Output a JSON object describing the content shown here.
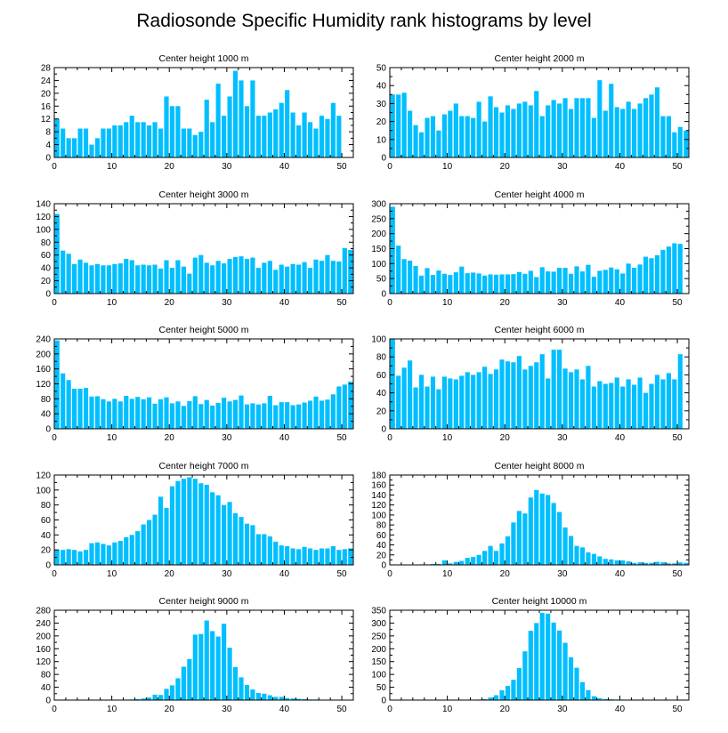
{
  "title": "Radiosonde Specific Humidity rank histograms by level",
  "colors": {
    "bar": "#00BFFF",
    "axis": "#000000",
    "background": "#FFFFFF"
  },
  "chart_data": [
    {
      "type": "bar",
      "title": "Center height 1000 m",
      "xlim": [
        0,
        52
      ],
      "xticks": [
        0,
        10,
        20,
        30,
        40,
        50
      ],
      "ylim": [
        0,
        28
      ],
      "yticks": [
        0,
        4,
        8,
        12,
        16,
        20,
        24,
        28
      ],
      "x": [
        0,
        1,
        2,
        3,
        4,
        5,
        6,
        7,
        8,
        9,
        10,
        11,
        12,
        13,
        14,
        15,
        16,
        17,
        18,
        19,
        20,
        21,
        22,
        23,
        24,
        25,
        26,
        27,
        28,
        29,
        30,
        31,
        32,
        33,
        34,
        35,
        36,
        37,
        38,
        39,
        40,
        41,
        42,
        43,
        44,
        45,
        46,
        47,
        48,
        49,
        50,
        51
      ],
      "values": [
        12,
        9,
        6,
        6,
        9,
        9,
        4,
        6,
        9,
        9,
        10,
        10,
        11,
        13,
        11,
        11,
        10,
        11,
        9,
        19,
        16,
        16,
        9,
        9,
        7,
        8,
        18,
        11,
        23,
        13,
        19,
        27,
        24,
        16,
        24,
        13,
        13,
        14,
        15,
        17,
        21,
        14,
        10,
        14,
        11,
        9,
        13,
        12,
        17,
        13,
        0,
        0
      ]
    },
    {
      "type": "bar",
      "title": "Center height 2000 m",
      "xlim": [
        0,
        52
      ],
      "xticks": [
        0,
        10,
        20,
        30,
        40,
        50
      ],
      "ylim": [
        0,
        50
      ],
      "yticks": [
        0,
        10,
        20,
        30,
        40,
        50
      ],
      "x": [
        0,
        1,
        2,
        3,
        4,
        5,
        6,
        7,
        8,
        9,
        10,
        11,
        12,
        13,
        14,
        15,
        16,
        17,
        18,
        19,
        20,
        21,
        22,
        23,
        24,
        25,
        26,
        27,
        28,
        29,
        30,
        31,
        32,
        33,
        34,
        35,
        36,
        37,
        38,
        39,
        40,
        41,
        42,
        43,
        44,
        45,
        46,
        47,
        48,
        49,
        50,
        51
      ],
      "values": [
        35,
        35,
        36,
        26,
        18,
        14,
        22,
        23,
        15,
        24,
        26,
        30,
        23,
        23,
        22,
        31,
        20,
        34,
        28,
        25,
        29,
        27,
        30,
        31,
        29,
        37,
        23,
        29,
        32,
        30,
        33,
        27,
        33,
        33,
        33,
        22,
        43,
        26,
        41,
        28,
        27,
        31,
        27,
        30,
        33,
        35,
        39,
        23,
        23,
        14,
        17,
        15
      ]
    },
    {
      "type": "bar",
      "title": "Center height 3000 m",
      "xlim": [
        0,
        52
      ],
      "xticks": [
        0,
        10,
        20,
        30,
        40,
        50
      ],
      "ylim": [
        0,
        140
      ],
      "yticks": [
        0,
        20,
        40,
        60,
        80,
        100,
        120,
        140
      ],
      "x": [
        0,
        1,
        2,
        3,
        4,
        5,
        6,
        7,
        8,
        9,
        10,
        11,
        12,
        13,
        14,
        15,
        16,
        17,
        18,
        19,
        20,
        21,
        22,
        23,
        24,
        25,
        26,
        27,
        28,
        29,
        30,
        31,
        32,
        33,
        34,
        35,
        36,
        37,
        38,
        39,
        40,
        41,
        42,
        43,
        44,
        45,
        46,
        47,
        48,
        49,
        50,
        51
      ],
      "values": [
        124,
        67,
        62,
        46,
        53,
        48,
        44,
        46,
        44,
        44,
        46,
        47,
        54,
        52,
        44,
        45,
        44,
        45,
        39,
        52,
        40,
        52,
        42,
        31,
        56,
        60,
        48,
        44,
        51,
        47,
        54,
        57,
        58,
        54,
        56,
        40,
        48,
        51,
        37,
        45,
        42,
        46,
        45,
        49,
        40,
        53,
        51,
        60,
        51,
        50,
        71,
        68
      ]
    },
    {
      "type": "bar",
      "title": "Center height 4000 m",
      "xlim": [
        0,
        52
      ],
      "xticks": [
        0,
        10,
        20,
        30,
        40,
        50
      ],
      "ylim": [
        0,
        300
      ],
      "yticks": [
        0,
        50,
        100,
        150,
        200,
        250,
        300
      ],
      "x": [
        0,
        1,
        2,
        3,
        4,
        5,
        6,
        7,
        8,
        9,
        10,
        11,
        12,
        13,
        14,
        15,
        16,
        17,
        18,
        19,
        20,
        21,
        22,
        23,
        24,
        25,
        26,
        27,
        28,
        29,
        30,
        31,
        32,
        33,
        34,
        35,
        36,
        37,
        38,
        39,
        40,
        41,
        42,
        43,
        44,
        45,
        46,
        47,
        48,
        49,
        50,
        51
      ],
      "values": [
        290,
        160,
        115,
        110,
        92,
        60,
        85,
        62,
        77,
        66,
        62,
        71,
        90,
        68,
        70,
        67,
        60,
        64,
        63,
        64,
        64,
        65,
        72,
        66,
        76,
        55,
        88,
        74,
        73,
        86,
        86,
        66,
        91,
        74,
        96,
        56,
        76,
        79,
        87,
        81,
        67,
        100,
        86,
        97,
        123,
        118,
        128,
        146,
        157,
        168,
        166,
        0
      ]
    },
    {
      "type": "bar",
      "title": "Center height 5000 m",
      "xlim": [
        0,
        52
      ],
      "xticks": [
        0,
        10,
        20,
        30,
        40,
        50
      ],
      "ylim": [
        0,
        240
      ],
      "yticks": [
        0,
        40,
        80,
        120,
        160,
        200,
        240
      ],
      "x": [
        0,
        1,
        2,
        3,
        4,
        5,
        6,
        7,
        8,
        9,
        10,
        11,
        12,
        13,
        14,
        15,
        16,
        17,
        18,
        19,
        20,
        21,
        22,
        23,
        24,
        25,
        26,
        27,
        28,
        29,
        30,
        31,
        32,
        33,
        34,
        35,
        36,
        37,
        38,
        39,
        40,
        41,
        42,
        43,
        44,
        45,
        46,
        47,
        48,
        49,
        50,
        51
      ],
      "values": [
        236,
        148,
        130,
        107,
        107,
        109,
        86,
        87,
        79,
        73,
        80,
        73,
        88,
        80,
        85,
        79,
        84,
        67,
        79,
        84,
        68,
        73,
        61,
        74,
        87,
        66,
        77,
        62,
        69,
        83,
        73,
        77,
        89,
        65,
        68,
        65,
        68,
        88,
        63,
        71,
        71,
        63,
        65,
        70,
        75,
        86,
        75,
        78,
        92,
        113,
        118,
        126
      ]
    },
    {
      "type": "bar",
      "title": "Center height 6000 m",
      "xlim": [
        0,
        52
      ],
      "xticks": [
        0,
        10,
        20,
        30,
        40,
        50
      ],
      "ylim": [
        0,
        100
      ],
      "yticks": [
        0,
        20,
        40,
        60,
        80,
        100
      ],
      "x": [
        0,
        1,
        2,
        3,
        4,
        5,
        6,
        7,
        8,
        9,
        10,
        11,
        12,
        13,
        14,
        15,
        16,
        17,
        18,
        19,
        20,
        21,
        22,
        23,
        24,
        25,
        26,
        27,
        28,
        29,
        30,
        31,
        32,
        33,
        34,
        35,
        36,
        37,
        38,
        39,
        40,
        41,
        42,
        43,
        44,
        45,
        46,
        47,
        48,
        49,
        50,
        51
      ],
      "values": [
        100,
        59,
        68,
        76,
        46,
        60,
        47,
        58,
        44,
        58,
        56,
        55,
        59,
        63,
        60,
        63,
        69,
        61,
        66,
        77,
        75,
        74,
        81,
        66,
        70,
        74,
        83,
        56,
        88,
        88,
        67,
        63,
        66,
        55,
        70,
        47,
        53,
        50,
        51,
        57,
        47,
        55,
        49,
        57,
        40,
        50,
        60,
        55,
        62,
        55,
        83,
        0
      ]
    },
    {
      "type": "bar",
      "title": "Center height 7000 m",
      "xlim": [
        0,
        52
      ],
      "xticks": [
        0,
        10,
        20,
        30,
        40,
        50
      ],
      "ylim": [
        0,
        120
      ],
      "yticks": [
        0,
        20,
        40,
        60,
        80,
        100,
        120
      ],
      "x": [
        0,
        1,
        2,
        3,
        4,
        5,
        6,
        7,
        8,
        9,
        10,
        11,
        12,
        13,
        14,
        15,
        16,
        17,
        18,
        19,
        20,
        21,
        22,
        23,
        24,
        25,
        26,
        27,
        28,
        29,
        30,
        31,
        32,
        33,
        34,
        35,
        36,
        37,
        38,
        39,
        40,
        41,
        42,
        43,
        44,
        45,
        46,
        47,
        48,
        49,
        50,
        51
      ],
      "values": [
        20,
        20,
        21,
        20,
        18,
        20,
        29,
        30,
        28,
        26,
        30,
        32,
        37,
        40,
        45,
        54,
        60,
        67,
        91,
        76,
        105,
        112,
        115,
        117,
        115,
        109,
        107,
        97,
        93,
        80,
        84,
        69,
        64,
        55,
        53,
        41,
        41,
        38,
        31,
        26,
        25,
        22,
        21,
        24,
        22,
        20,
        22,
        22,
        25,
        20,
        21,
        22
      ]
    },
    {
      "type": "bar",
      "title": "Center height 8000 m",
      "xlim": [
        0,
        52
      ],
      "xticks": [
        0,
        10,
        20,
        30,
        40,
        50
      ],
      "ylim": [
        0,
        180
      ],
      "yticks": [
        0,
        20,
        40,
        60,
        80,
        100,
        120,
        140,
        160,
        180
      ],
      "x": [
        0,
        1,
        2,
        3,
        4,
        5,
        6,
        7,
        8,
        9,
        10,
        11,
        12,
        13,
        14,
        15,
        16,
        17,
        18,
        19,
        20,
        21,
        22,
        23,
        24,
        25,
        26,
        27,
        28,
        29,
        30,
        31,
        32,
        33,
        34,
        35,
        36,
        37,
        38,
        39,
        40,
        41,
        42,
        43,
        44,
        45,
        46,
        47,
        48,
        49,
        50,
        51
      ],
      "values": [
        0,
        0,
        0,
        0,
        0,
        1,
        1,
        2,
        2,
        9,
        3,
        6,
        8,
        14,
        16,
        20,
        28,
        38,
        28,
        43,
        57,
        85,
        108,
        103,
        135,
        150,
        143,
        140,
        124,
        106,
        75,
        58,
        38,
        35,
        25,
        22,
        17,
        12,
        11,
        9,
        9,
        7,
        4,
        5,
        4,
        4,
        6,
        5,
        3,
        3,
        5,
        4
      ]
    },
    {
      "type": "bar",
      "title": "Center height 9000 m",
      "xlim": [
        0,
        52
      ],
      "xticks": [
        0,
        10,
        20,
        30,
        40,
        50
      ],
      "ylim": [
        0,
        280
      ],
      "yticks": [
        0,
        40,
        80,
        120,
        160,
        200,
        240,
        280
      ],
      "x": [
        0,
        1,
        2,
        3,
        4,
        5,
        6,
        7,
        8,
        9,
        10,
        11,
        12,
        13,
        14,
        15,
        16,
        17,
        18,
        19,
        20,
        21,
        22,
        23,
        24,
        25,
        26,
        27,
        28,
        29,
        30,
        31,
        32,
        33,
        34,
        35,
        36,
        37,
        38,
        39,
        40,
        41,
        42,
        43,
        44,
        45,
        46,
        47,
        48,
        49,
        50,
        51
      ],
      "values": [
        0,
        0,
        0,
        0,
        0,
        0,
        0,
        0,
        0,
        0,
        0,
        1,
        1,
        2,
        3,
        5,
        8,
        17,
        16,
        35,
        46,
        68,
        104,
        128,
        204,
        206,
        248,
        215,
        198,
        238,
        163,
        103,
        71,
        47,
        33,
        22,
        20,
        15,
        10,
        10,
        6,
        5,
        4,
        3,
        2,
        2,
        1,
        1,
        1,
        1,
        0,
        0
      ]
    },
    {
      "type": "bar",
      "title": "Center height 10000 m",
      "xlim": [
        0,
        52
      ],
      "xticks": [
        0,
        10,
        20,
        30,
        40,
        50
      ],
      "ylim": [
        0,
        350
      ],
      "yticks": [
        0,
        50,
        100,
        150,
        200,
        250,
        300,
        350
      ],
      "x": [
        0,
        1,
        2,
        3,
        4,
        5,
        6,
        7,
        8,
        9,
        10,
        11,
        12,
        13,
        14,
        15,
        16,
        17,
        18,
        19,
        20,
        21,
        22,
        23,
        24,
        25,
        26,
        27,
        28,
        29,
        30,
        31,
        32,
        33,
        34,
        35,
        36,
        37,
        38,
        39,
        40,
        41,
        42,
        43,
        44,
        45,
        46,
        47,
        48,
        49,
        50,
        51
      ],
      "values": [
        0,
        0,
        0,
        0,
        0,
        0,
        0,
        0,
        0,
        0,
        0,
        0,
        0,
        0,
        0,
        2,
        4,
        10,
        19,
        38,
        55,
        79,
        125,
        190,
        270,
        300,
        340,
        337,
        302,
        271,
        223,
        167,
        126,
        70,
        39,
        15,
        7,
        4,
        3,
        2,
        2,
        1,
        2,
        1,
        1,
        1,
        1,
        1,
        1,
        1,
        0,
        0
      ]
    }
  ]
}
